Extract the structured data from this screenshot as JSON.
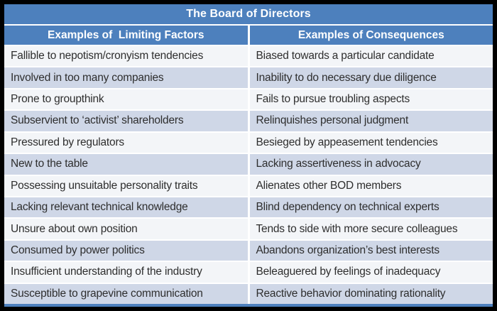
{
  "table": {
    "title": "The Board of Directors",
    "columns": [
      {
        "header": "Examples of  Limiting Factors"
      },
      {
        "header": "Examples of Consequences"
      }
    ],
    "rows": [
      {
        "factor": "Fallible to nepotism/cronyism tendencies",
        "consequence": "Biased towards a particular candidate"
      },
      {
        "factor": "Involved in too many companies",
        "consequence": "Inability to do necessary due diligence"
      },
      {
        "factor": "Prone to groupthink",
        "consequence": "Fails to pursue troubling aspects"
      },
      {
        "factor": "Subservient to ‘activist’ shareholders",
        "consequence": "Relinquishes personal judgment"
      },
      {
        "factor": "Pressured by regulators",
        "consequence": "Besieged by appeasement tendencies"
      },
      {
        "factor": "New to the table",
        "consequence": "Lacking assertiveness in advocacy"
      },
      {
        "factor": "Possessing unsuitable personality traits",
        "consequence": "Alienates other BOD members"
      },
      {
        "factor": "Lacking relevant technical knowledge",
        "consequence": "Blind dependency on technical experts"
      },
      {
        "factor": "Unsure about own position",
        "consequence": "Tends to side with more secure colleagues"
      },
      {
        "factor": "Consumed by power politics",
        "consequence": "Abandons organization’s best interests"
      },
      {
        "factor": "Insufficient understanding  of the industry",
        "consequence": "Beleaguered by feelings of inadequacy"
      },
      {
        "factor": "Susceptible to grapevine communication",
        "consequence": "Reactive behavior dominating rationality"
      }
    ]
  },
  "colors": {
    "header_blue": "#4d80bd",
    "stripe_blue": "#cfd7e7",
    "row_white": "#f3f5f8",
    "border_black": "#000000",
    "header_text": "#ffffff",
    "body_text": "#2e2e2e"
  }
}
